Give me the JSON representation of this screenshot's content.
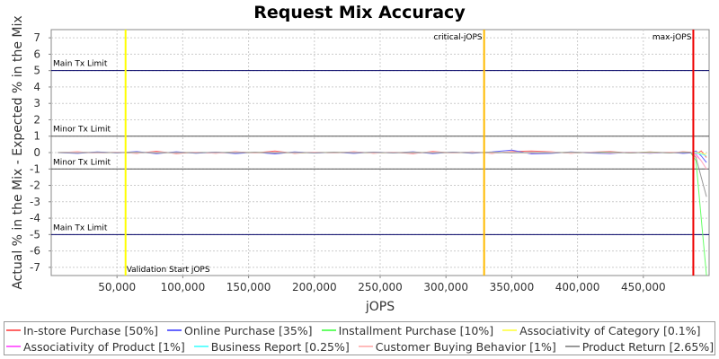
{
  "chart_data": {
    "type": "line",
    "title": "Request Mix Accuracy",
    "xlabel": "jOPS",
    "ylabel": "Actual % in the Mix - Expected % in the Mix",
    "xlim": [
      0,
      500000
    ],
    "ylim": [
      -7.5,
      7.5
    ],
    "x_ticks": [
      50000,
      100000,
      150000,
      200000,
      250000,
      300000,
      350000,
      400000,
      450000
    ],
    "x_tick_labels": [
      "50,000",
      "100,000",
      "150,000",
      "200,000",
      "250,000",
      "300,000",
      "350,000",
      "400,000",
      "450,000"
    ],
    "y_ticks": [
      7,
      6,
      5,
      4,
      3,
      2,
      1,
      0,
      -1,
      -2,
      -3,
      -4,
      -5,
      -6,
      -7
    ],
    "y_tick_labels": [
      "7",
      "6",
      "5",
      "4",
      "3",
      "2",
      "1",
      "0",
      "-1",
      "-2",
      "-3",
      "-4",
      "-5",
      "-6",
      "-7"
    ],
    "grid": true,
    "legend_position": "bottom",
    "horizontal_lines": [
      {
        "label": "Main Tx Limit",
        "y": 5,
        "color": "#000066"
      },
      {
        "label": "Minor Tx Limit",
        "y": 1,
        "color": "#555555"
      },
      {
        "label": "Minor Tx Limit",
        "y": -1,
        "color": "#555555"
      },
      {
        "label": "Main Tx Limit",
        "y": -5,
        "color": "#000066"
      }
    ],
    "vertical_lines": [
      {
        "label": "Validation Start jOPS",
        "x": 56500,
        "color": "#ffff00",
        "label_pos": "bottom"
      },
      {
        "label": "critical-jOPS",
        "x": 329000,
        "color": "#ffbb00",
        "label_pos": "top"
      },
      {
        "label": "max-jOPS",
        "x": 488000,
        "color": "#ee0000",
        "label_pos": "top"
      }
    ],
    "x": [
      5000,
      20000,
      35000,
      50000,
      65000,
      80000,
      95000,
      110000,
      125000,
      140000,
      155000,
      170000,
      185000,
      200000,
      215000,
      230000,
      245000,
      260000,
      275000,
      290000,
      305000,
      320000,
      335000,
      350000,
      365000,
      380000,
      395000,
      410000,
      425000,
      440000,
      455000,
      470000,
      480000,
      486000,
      490000,
      494000,
      498000
    ],
    "series": [
      {
        "name": "In-store Purchase [50%]",
        "color": "#ff6666",
        "values": [
          0,
          0.05,
          -0.03,
          0.02,
          -0.05,
          0.08,
          -0.06,
          0.03,
          -0.04,
          0.05,
          -0.02,
          0.1,
          -0.05,
          0.03,
          -0.02,
          0.05,
          -0.04,
          0.02,
          -0.06,
          0.07,
          -0.03,
          0.04,
          -0.05,
          0.06,
          0.1,
          0.05,
          -0.04,
          0.03,
          0.06,
          -0.03,
          0.04,
          -0.02,
          0.05,
          0.02,
          -0.1,
          0.1,
          -0.3
        ]
      },
      {
        "name": "Online Purchase [35%]",
        "color": "#6666ff",
        "values": [
          0,
          -0.05,
          0.04,
          -0.02,
          0.06,
          -0.07,
          0.05,
          -0.04,
          0.03,
          -0.06,
          0.02,
          -0.08,
          0.04,
          -0.03,
          0.02,
          -0.05,
          0.03,
          -0.02,
          0.05,
          -0.06,
          0.03,
          -0.04,
          0.04,
          0.15,
          -0.08,
          -0.05,
          0.04,
          -0.03,
          -0.06,
          0.03,
          -0.04,
          0.02,
          -0.05,
          -0.02,
          0.1,
          -0.2,
          -0.6
        ]
      },
      {
        "name": "Installment Purchase [10%]",
        "color": "#66ff66",
        "values": [
          0,
          0.02,
          -0.02,
          0.01,
          -0.02,
          0.03,
          -0.02,
          0.02,
          -0.01,
          0.02,
          -0.02,
          0.03,
          -0.02,
          0.01,
          -0.01,
          0.02,
          -0.02,
          0.01,
          -0.02,
          0.02,
          -0.01,
          0.02,
          -0.02,
          0.02,
          -0.03,
          0.02,
          -0.02,
          0.01,
          0.02,
          -0.01,
          0.02,
          -0.01,
          0.02,
          0,
          -0.5,
          -4,
          -7.5
        ]
      },
      {
        "name": "Associativity of Category [0.1%]",
        "color": "#ffff66",
        "values": [
          0,
          0.01,
          -0.01,
          0,
          0.01,
          -0.01,
          0,
          0.01,
          -0.01,
          0,
          0.01,
          0,
          -0.01,
          0,
          0.01,
          0,
          -0.01,
          0,
          0.01,
          0,
          -0.01,
          0,
          0.01,
          0,
          -0.01,
          0,
          0.01,
          0,
          -0.01,
          0,
          0.01,
          0,
          0,
          0,
          0,
          -0.05,
          -0.1
        ]
      },
      {
        "name": "Associativity of Product [1%]",
        "color": "#ff66ff",
        "values": [
          0,
          0.01,
          -0.02,
          0.01,
          -0.01,
          0.02,
          -0.01,
          0.01,
          -0.02,
          0.01,
          -0.01,
          0.02,
          -0.01,
          0.01,
          -0.01,
          0.02,
          -0.01,
          0.01,
          -0.02,
          0.01,
          -0.01,
          0.02,
          -0.01,
          0.01,
          -0.02,
          0.01,
          -0.01,
          0.02,
          -0.01,
          0.01,
          -0.02,
          0.01,
          0,
          0,
          -0.1,
          -0.5,
          -1
        ]
      },
      {
        "name": "Business Report [0.25%]",
        "color": "#66ffff",
        "values": [
          0,
          0.02,
          -0.01,
          0.01,
          -0.02,
          0.01,
          -0.01,
          0.02,
          -0.01,
          0.01,
          -0.02,
          0.01,
          -0.01,
          0.02,
          -0.01,
          0.01,
          -0.02,
          0.01,
          -0.01,
          0.02,
          -0.01,
          0.01,
          -0.02,
          0.01,
          -0.01,
          0.02,
          -0.01,
          0.01,
          -0.02,
          0.01,
          -0.01,
          0.02,
          0,
          0,
          -0.05,
          -0.1,
          -0.2
        ]
      },
      {
        "name": "Customer Buying Behavior [1%]",
        "color": "#ffbbbb",
        "values": [
          0,
          0.03,
          -0.02,
          0.02,
          -0.03,
          0.02,
          -0.02,
          0.03,
          -0.02,
          0.02,
          -0.03,
          0.02,
          -0.02,
          0.03,
          -0.02,
          0.02,
          -0.03,
          0.02,
          -0.02,
          0.03,
          -0.02,
          0.02,
          -0.03,
          0.02,
          -0.02,
          0.03,
          -0.02,
          0.02,
          -0.03,
          0.02,
          -0.02,
          0.03,
          0.01,
          0,
          -0.2,
          -0.5,
          -1
        ]
      },
      {
        "name": "Product Return [2.65%]",
        "color": "#999999",
        "values": [
          0,
          -0.02,
          0.02,
          -0.01,
          0.02,
          -0.02,
          0.01,
          -0.02,
          0.02,
          -0.01,
          0.02,
          -0.02,
          0.01,
          -0.02,
          0.02,
          -0.01,
          0.02,
          -0.02,
          0.01,
          -0.02,
          0.02,
          -0.01,
          0.02,
          -0.02,
          0.01,
          -0.02,
          0.02,
          -0.01,
          0.02,
          -0.02,
          0.01,
          -0.02,
          0,
          0,
          -0.3,
          -1.5,
          -2.7
        ]
      }
    ]
  }
}
